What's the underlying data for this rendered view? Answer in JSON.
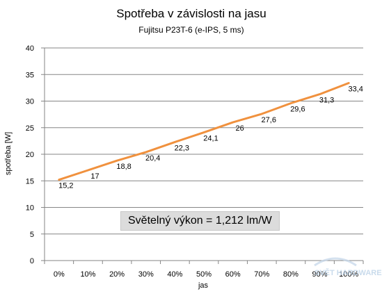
{
  "chart_data": {
    "type": "line",
    "title": "Spotřeba v závislosti na jasu",
    "subtitle": "Fujitsu P23T-6 (e-IPS, 5 ms)",
    "xlabel": "jas",
    "ylabel": "spotřeba [W]",
    "categories": [
      "0%",
      "10%",
      "20%",
      "30%",
      "40%",
      "50%",
      "60%",
      "70%",
      "80%",
      "90%",
      "100%"
    ],
    "x": [
      0,
      10,
      20,
      30,
      40,
      50,
      60,
      70,
      80,
      90,
      100
    ],
    "series": [
      {
        "values": [
          15.2,
          17,
          18.8,
          20.4,
          22.3,
          24.1,
          26,
          27.6,
          29.6,
          31.3,
          33.4
        ],
        "labels": [
          "15,2",
          "17",
          "18,8",
          "20,4",
          "22,3",
          "24,1",
          "26",
          "27,6",
          "29,6",
          "31,3",
          "33,4"
        ],
        "color": "#f0913e"
      }
    ],
    "ylim": [
      0,
      40
    ],
    "yticks": [
      0,
      5,
      10,
      15,
      20,
      25,
      30,
      35,
      40
    ],
    "grid": "horizontal",
    "legend": "none",
    "annotation": "Světelný výkon = 1,212 lm/W"
  },
  "watermark": {
    "text": "SVĚT HARDWARE"
  }
}
